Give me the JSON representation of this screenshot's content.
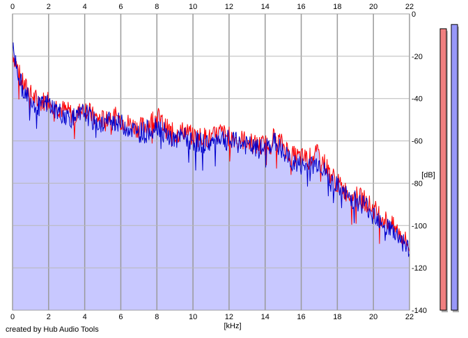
{
  "chart_data": {
    "type": "line",
    "xlabel": "[kHz]",
    "ylabel": "[dB]",
    "xlim": [
      0,
      22
    ],
    "ylim": [
      -140,
      0
    ],
    "x_ticks": [
      0,
      2,
      4,
      6,
      8,
      10,
      12,
      14,
      16,
      18,
      20,
      22
    ],
    "y_ticks": [
      0,
      -20,
      -40,
      -60,
      -80,
      -100,
      -120,
      -140
    ],
    "grid": true,
    "colors": {
      "fill": "#c8c8ff",
      "channel_red": "#ff0000",
      "channel_blue": "#0000cc",
      "meter_red": "#f08080",
      "meter_blue": "#9898f8"
    },
    "series": [
      {
        "color": "#ff0000",
        "x": [
          0,
          0.5,
          1,
          1.5,
          2,
          2.5,
          3,
          3.5,
          4,
          4.5,
          5,
          5.5,
          6,
          6.5,
          7,
          7.5,
          8,
          8.5,
          9,
          9.5,
          10,
          10.5,
          11,
          11.5,
          12,
          12.5,
          13,
          13.5,
          14,
          14.5,
          15,
          15.5,
          16,
          16.5,
          17,
          17.5,
          18,
          18.5,
          19,
          19.5,
          20,
          20.5,
          21,
          21.5,
          22
        ],
        "values": [
          -18,
          -32,
          -38,
          -42,
          -40,
          -44,
          -46,
          -48,
          -44,
          -49,
          -50,
          -48,
          -50,
          -52,
          -54,
          -52,
          -48,
          -54,
          -57,
          -55,
          -58,
          -58,
          -59,
          -56,
          -58,
          -59,
          -60,
          -62,
          -62,
          -58,
          -62,
          -67,
          -68,
          -68,
          -66,
          -74,
          -80,
          -84,
          -86,
          -88,
          -92,
          -96,
          -100,
          -104,
          -110
        ]
      },
      {
        "color": "#0000cc",
        "x": [
          0,
          0.5,
          1,
          1.5,
          2,
          2.5,
          3,
          3.5,
          4,
          4.5,
          5,
          5.5,
          6,
          6.5,
          7,
          7.5,
          8,
          8.5,
          9,
          9.5,
          10,
          10.5,
          11,
          11.5,
          12,
          12.5,
          13,
          13.5,
          14,
          14.5,
          15,
          15.5,
          16,
          16.5,
          17,
          17.5,
          18,
          18.5,
          19,
          19.5,
          20,
          20.5,
          21,
          21.5,
          22
        ],
        "values": [
          -16,
          -34,
          -40,
          -44,
          -42,
          -46,
          -48,
          -50,
          -46,
          -51,
          -52,
          -50,
          -52,
          -54,
          -56,
          -55,
          -52,
          -57,
          -60,
          -58,
          -60,
          -61,
          -61,
          -58,
          -60,
          -61,
          -62,
          -64,
          -64,
          -60,
          -66,
          -70,
          -72,
          -72,
          -70,
          -78,
          -82,
          -86,
          -88,
          -90,
          -94,
          -98,
          -102,
          -106,
          -112
        ]
      }
    ],
    "meters": [
      {
        "color": "#f08080",
        "top": -7,
        "bottom": -140
      },
      {
        "color": "#9898f8",
        "top": -5,
        "bottom": -140
      }
    ]
  },
  "footer": {
    "credit": "created by Hub Audio Tools"
  }
}
